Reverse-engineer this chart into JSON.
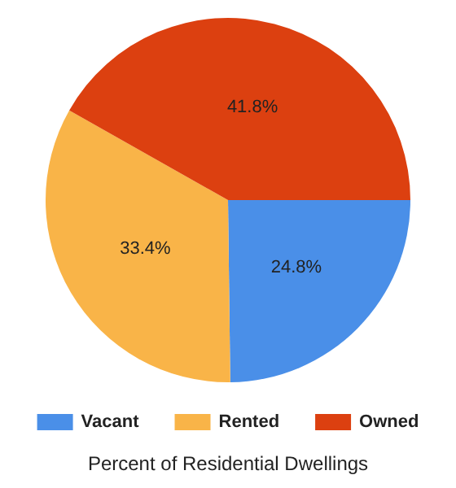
{
  "chart_data": {
    "type": "pie",
    "title": "Percent of Residential Dwellings",
    "categories": [
      "Vacant",
      "Rented",
      "Owned"
    ],
    "values": [
      24.8,
      33.4,
      41.8
    ],
    "value_labels": [
      "24.8%",
      "33.4%",
      "41.8%"
    ],
    "colors": [
      "#4a8fe8",
      "#f9b448",
      "#dc4010"
    ],
    "legend": "bottom"
  }
}
